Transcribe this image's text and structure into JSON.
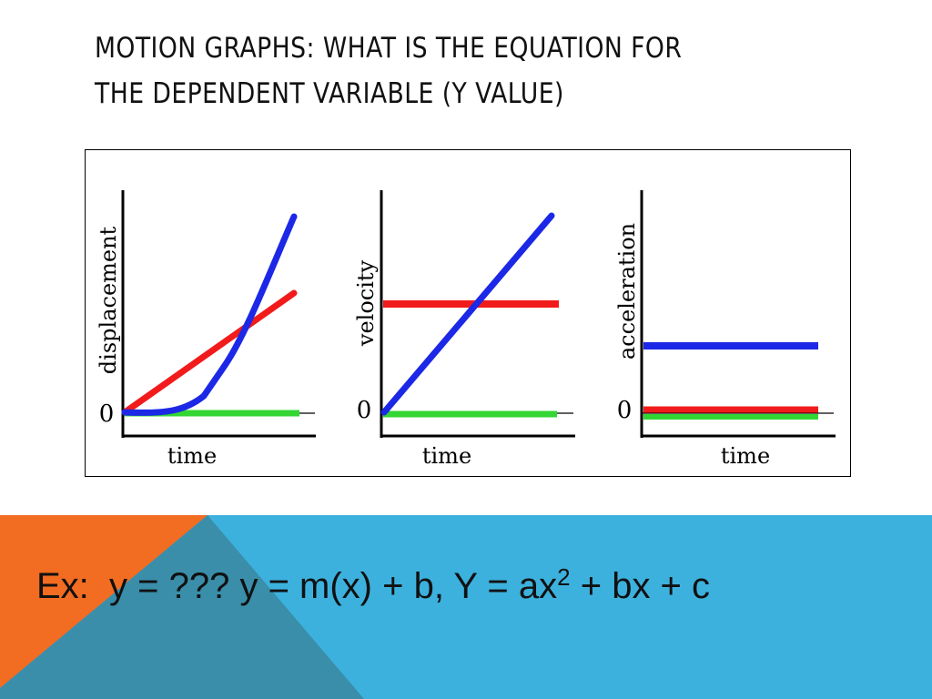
{
  "slide": {
    "title_line1": "MOTION GRAPHS: WHAT IS THE EQUATION FOR",
    "title_line2": "THE DEPENDENT VARIABLE (Y VALUE)",
    "equation": {
      "part1": "Ex:  y = ??? y = m(x) + b, Y = ax",
      "exponent": "2",
      "part2": " + bx + c"
    }
  },
  "graphs": [
    {
      "ylabel": "displacement",
      "xlabel": "time",
      "zero_label": "0"
    },
    {
      "ylabel": "velocity",
      "xlabel": "time",
      "zero_label": "0"
    },
    {
      "ylabel": "acceleration",
      "xlabel": "time",
      "zero_label": "0"
    }
  ],
  "colors": {
    "red_line": "#f21b1b",
    "blue_line": "#1c28e6",
    "green_line": "#33d633",
    "banner_blue": "#3db1de",
    "banner_orange": "#f26c21",
    "banner_teal": "#3a8eaa"
  }
}
